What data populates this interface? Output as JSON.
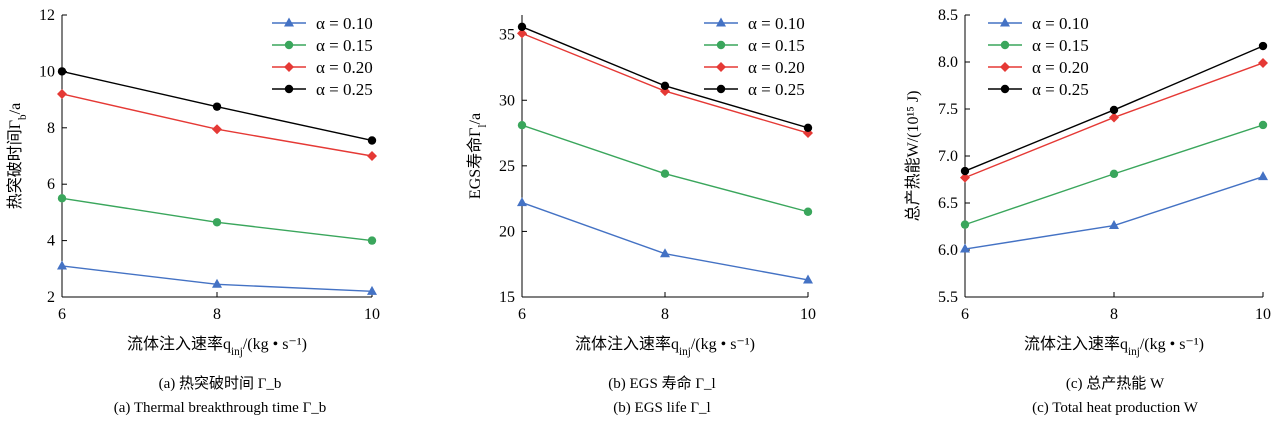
{
  "chart_data": [
    {
      "type": "line",
      "x": [
        6,
        8,
        10
      ],
      "xlim": [
        6,
        10
      ],
      "ylim": [
        2,
        12
      ],
      "xticks": [
        "6",
        "8",
        "10"
      ],
      "yticks": [
        "2",
        "4",
        "6",
        "8",
        "10",
        "12"
      ],
      "xlabel": "流体注入速率q_inj/(kg • s⁻¹)",
      "ylabel": "热突破时间Γ_b/a",
      "legend_position": "top-right",
      "series": [
        {
          "name": "α = 0.10",
          "color": "#4472c4",
          "marker": "triangle",
          "values": [
            3.1,
            2.45,
            2.2
          ]
        },
        {
          "name": "α = 0.15",
          "color": "#3aa65c",
          "marker": "circle",
          "values": [
            5.5,
            4.65,
            4.0
          ]
        },
        {
          "name": "α = 0.20",
          "color": "#e53935",
          "marker": "diamond",
          "values": [
            9.2,
            7.95,
            7.0
          ]
        },
        {
          "name": "α = 0.25",
          "color": "#000000",
          "marker": "circle",
          "values": [
            10.0,
            8.75,
            7.55
          ]
        }
      ],
      "caption_cn": "(a)  热突破时间 Γ_b",
      "caption_en": "(a) Thermal breakthrough time Γ_b"
    },
    {
      "type": "line",
      "x": [
        6,
        8,
        10
      ],
      "xlim": [
        6,
        10
      ],
      "ylim": [
        15,
        36.5
      ],
      "xticks": [
        "6",
        "8",
        "10"
      ],
      "yticks": [
        "15",
        "20",
        "25",
        "30",
        "35"
      ],
      "xlabel": "流体注入速率q_inj/(kg • s⁻¹)",
      "ylabel": "EGS寿命Γ_l/a",
      "legend_position": "top-right",
      "series": [
        {
          "name": "α = 0.10",
          "color": "#4472c4",
          "marker": "triangle",
          "values": [
            22.2,
            18.3,
            16.3
          ]
        },
        {
          "name": "α = 0.15",
          "color": "#3aa65c",
          "marker": "circle",
          "values": [
            28.1,
            24.4,
            21.5
          ]
        },
        {
          "name": "α = 0.20",
          "color": "#e53935",
          "marker": "diamond",
          "values": [
            35.1,
            30.7,
            27.5
          ]
        },
        {
          "name": "α = 0.25",
          "color": "#000000",
          "marker": "circle",
          "values": [
            35.6,
            31.1,
            27.9
          ]
        }
      ],
      "caption_cn": "(b) EGS 寿命 Γ_l",
      "caption_en": "(b) EGS life Γ_l"
    },
    {
      "type": "line",
      "x": [
        6,
        8,
        10
      ],
      "xlim": [
        6,
        10
      ],
      "ylim": [
        5.5,
        8.5
      ],
      "xticks": [
        "6",
        "8",
        "10"
      ],
      "yticks": [
        "5.5",
        "6.0",
        "6.5",
        "7.0",
        "7.5",
        "8.0",
        "8.5"
      ],
      "xlabel": "流体注入速率q_inj/(kg • s⁻¹)",
      "ylabel": "总产热能W/(10¹⁵ J)",
      "legend_position": "top-left",
      "series": [
        {
          "name": "α = 0.10",
          "color": "#4472c4",
          "marker": "triangle",
          "values": [
            6.01,
            6.26,
            6.78
          ]
        },
        {
          "name": "α = 0.15",
          "color": "#3aa65c",
          "marker": "circle",
          "values": [
            6.27,
            6.81,
            7.33
          ]
        },
        {
          "name": "α = 0.20",
          "color": "#e53935",
          "marker": "diamond",
          "values": [
            6.77,
            7.41,
            7.99
          ]
        },
        {
          "name": "α = 0.25",
          "color": "#000000",
          "marker": "circle",
          "values": [
            6.84,
            7.49,
            8.17
          ]
        }
      ],
      "caption_cn": "(c)  总产热能  W",
      "caption_en": "(c) Total heat production W"
    }
  ]
}
